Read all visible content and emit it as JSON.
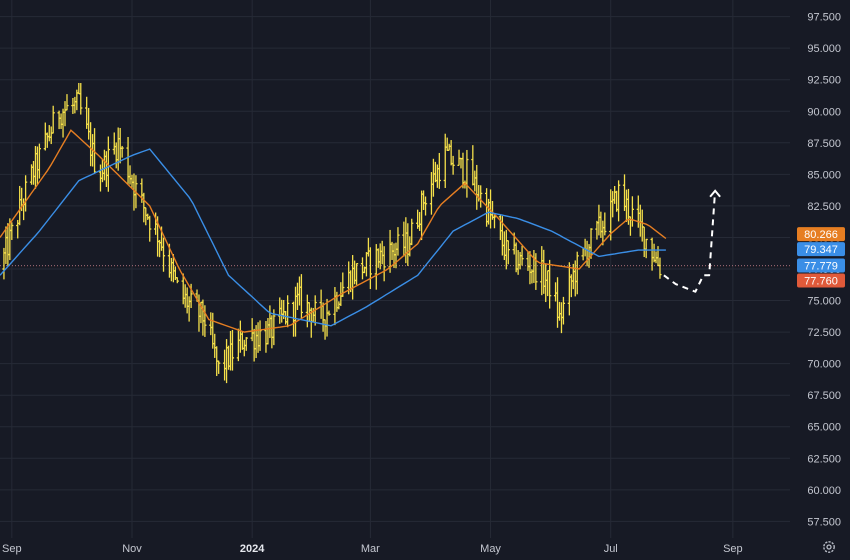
{
  "chart_data": {
    "type": "candlestick",
    "y_axis": {
      "ticks": [
        "97.500",
        "95.000",
        "92.500",
        "90.000",
        "87.500",
        "85.000",
        "82.500",
        "80.000",
        "77.500",
        "75.000",
        "72.500",
        "70.000",
        "67.500",
        "65.000",
        "62.500",
        "60.000",
        "57.500"
      ],
      "range": [
        56.5,
        98.5
      ]
    },
    "x_axis": {
      "ticks": [
        {
          "label": "Sep",
          "date": "2023-09-01"
        },
        {
          "label": "Nov",
          "date": "2023-11-01"
        },
        {
          "label": "2024",
          "date": "2024-01-01",
          "bold": true
        },
        {
          "label": "Mar",
          "date": "2024-03-01"
        },
        {
          "label": "May",
          "date": "2024-05-01"
        },
        {
          "label": "Jul",
          "date": "2024-07-01"
        },
        {
          "label": "Sep",
          "date": "2024-09-01"
        }
      ],
      "range": [
        "2023-08-26",
        "2024-09-30"
      ]
    },
    "price_series": {
      "color": "#f5e04a",
      "anchors": [
        {
          "date": "2023-08-26",
          "value": 77.5
        },
        {
          "date": "2023-09-10",
          "value": 84.5
        },
        {
          "date": "2023-09-25",
          "value": 90.0
        },
        {
          "date": "2023-10-05",
          "value": 90.5
        },
        {
          "date": "2023-10-15",
          "value": 85.0
        },
        {
          "date": "2023-10-25",
          "value": 87.5
        },
        {
          "date": "2023-11-05",
          "value": 83.0
        },
        {
          "date": "2023-11-15",
          "value": 80.0
        },
        {
          "date": "2023-11-25",
          "value": 75.5
        },
        {
          "date": "2023-12-08",
          "value": 73.5
        },
        {
          "date": "2023-12-15",
          "value": 69.5
        },
        {
          "date": "2023-12-28",
          "value": 72.0
        },
        {
          "date": "2024-01-10",
          "value": 72.5
        },
        {
          "date": "2024-01-25",
          "value": 75.0
        },
        {
          "date": "2024-02-05",
          "value": 73.5
        },
        {
          "date": "2024-02-20",
          "value": 77.0
        },
        {
          "date": "2024-03-05",
          "value": 78.5
        },
        {
          "date": "2024-03-20",
          "value": 79.5
        },
        {
          "date": "2024-03-28",
          "value": 83.0
        },
        {
          "date": "2024-04-08",
          "value": 86.5
        },
        {
          "date": "2024-04-20",
          "value": 85.0
        },
        {
          "date": "2024-04-30",
          "value": 82.0
        },
        {
          "date": "2024-05-10",
          "value": 78.5
        },
        {
          "date": "2024-05-25",
          "value": 77.5
        },
        {
          "date": "2024-06-01",
          "value": 76.0
        },
        {
          "date": "2024-06-05",
          "value": 73.5
        },
        {
          "date": "2024-06-12",
          "value": 77.0
        },
        {
          "date": "2024-06-20",
          "value": 79.5
        },
        {
          "date": "2024-07-01",
          "value": 82.0
        },
        {
          "date": "2024-07-05",
          "value": 83.5
        },
        {
          "date": "2024-07-15",
          "value": 81.0
        },
        {
          "date": "2024-07-22",
          "value": 79.0
        },
        {
          "date": "2024-07-28",
          "value": 77.0
        }
      ]
    },
    "moving_averages": [
      {
        "color": "#e67e22",
        "anchors": [
          {
            "date": "2023-08-26",
            "value": 80.0
          },
          {
            "date": "2023-09-20",
            "value": 85.5
          },
          {
            "date": "2023-10-01",
            "value": 88.5
          },
          {
            "date": "2023-10-15",
            "value": 86.5
          },
          {
            "date": "2023-11-10",
            "value": 82.5
          },
          {
            "date": "2023-11-25",
            "value": 77.5
          },
          {
            "date": "2023-12-10",
            "value": 73.5
          },
          {
            "date": "2023-12-28",
            "value": 72.5
          },
          {
            "date": "2024-01-20",
            "value": 73.0
          },
          {
            "date": "2024-02-15",
            "value": 75.5
          },
          {
            "date": "2024-03-10",
            "value": 77.5
          },
          {
            "date": "2024-03-25",
            "value": 79.5
          },
          {
            "date": "2024-04-05",
            "value": 82.5
          },
          {
            "date": "2024-04-18",
            "value": 84.3
          },
          {
            "date": "2024-05-05",
            "value": 81.5
          },
          {
            "date": "2024-05-25",
            "value": 78.0
          },
          {
            "date": "2024-06-15",
            "value": 77.5
          },
          {
            "date": "2024-07-01",
            "value": 80.3
          },
          {
            "date": "2024-07-10",
            "value": 81.5
          },
          {
            "date": "2024-07-20",
            "value": 81.0
          },
          {
            "date": "2024-07-30",
            "value": 79.8
          }
        ]
      },
      {
        "color": "#3a8ee6",
        "anchors": [
          {
            "date": "2023-08-26",
            "value": 77.0
          },
          {
            "date": "2023-09-15",
            "value": 80.5
          },
          {
            "date": "2023-10-05",
            "value": 84.5
          },
          {
            "date": "2023-11-01",
            "value": 86.5
          },
          {
            "date": "2023-11-10",
            "value": 87.0
          },
          {
            "date": "2023-12-01",
            "value": 83.0
          },
          {
            "date": "2023-12-20",
            "value": 77.0
          },
          {
            "date": "2024-01-10",
            "value": 74.0
          },
          {
            "date": "2024-02-10",
            "value": 73.0
          },
          {
            "date": "2024-02-28",
            "value": 74.5
          },
          {
            "date": "2024-03-25",
            "value": 77.0
          },
          {
            "date": "2024-04-12",
            "value": 80.5
          },
          {
            "date": "2024-04-30",
            "value": 82.0
          },
          {
            "date": "2024-05-15",
            "value": 81.5
          },
          {
            "date": "2024-06-01",
            "value": 80.5
          },
          {
            "date": "2024-06-25",
            "value": 78.5
          },
          {
            "date": "2024-07-15",
            "value": 79.0
          },
          {
            "date": "2024-07-30",
            "value": 79.0
          }
        ]
      }
    ],
    "price_lines": [
      {
        "value": 77.779,
        "color": "#3a8ee6"
      },
      {
        "value": 77.76,
        "color": "#e05a3a"
      }
    ],
    "projection": {
      "color": "#ffffff",
      "points": [
        {
          "date": "2024-07-28",
          "value": 77.0
        },
        {
          "date": "2024-08-03",
          "value": 76.3
        },
        {
          "date": "2024-08-13",
          "value": 75.7
        },
        {
          "date": "2024-08-17",
          "value": 77.0
        },
        {
          "date": "2024-08-20",
          "value": 77.0
        },
        {
          "date": "2024-08-23",
          "value": 83.7
        }
      ]
    },
    "badges": [
      {
        "label": "80.266",
        "color": "#e67e22",
        "value": 80.266
      },
      {
        "label": "79.347",
        "color": "#3a8ee6",
        "value": 79.347
      },
      {
        "label": "77.779",
        "color": "#3a8ee6",
        "value": 77.779
      },
      {
        "label": "77.760",
        "color": "#e05a3a",
        "value": 77.76
      }
    ],
    "grid": true
  }
}
